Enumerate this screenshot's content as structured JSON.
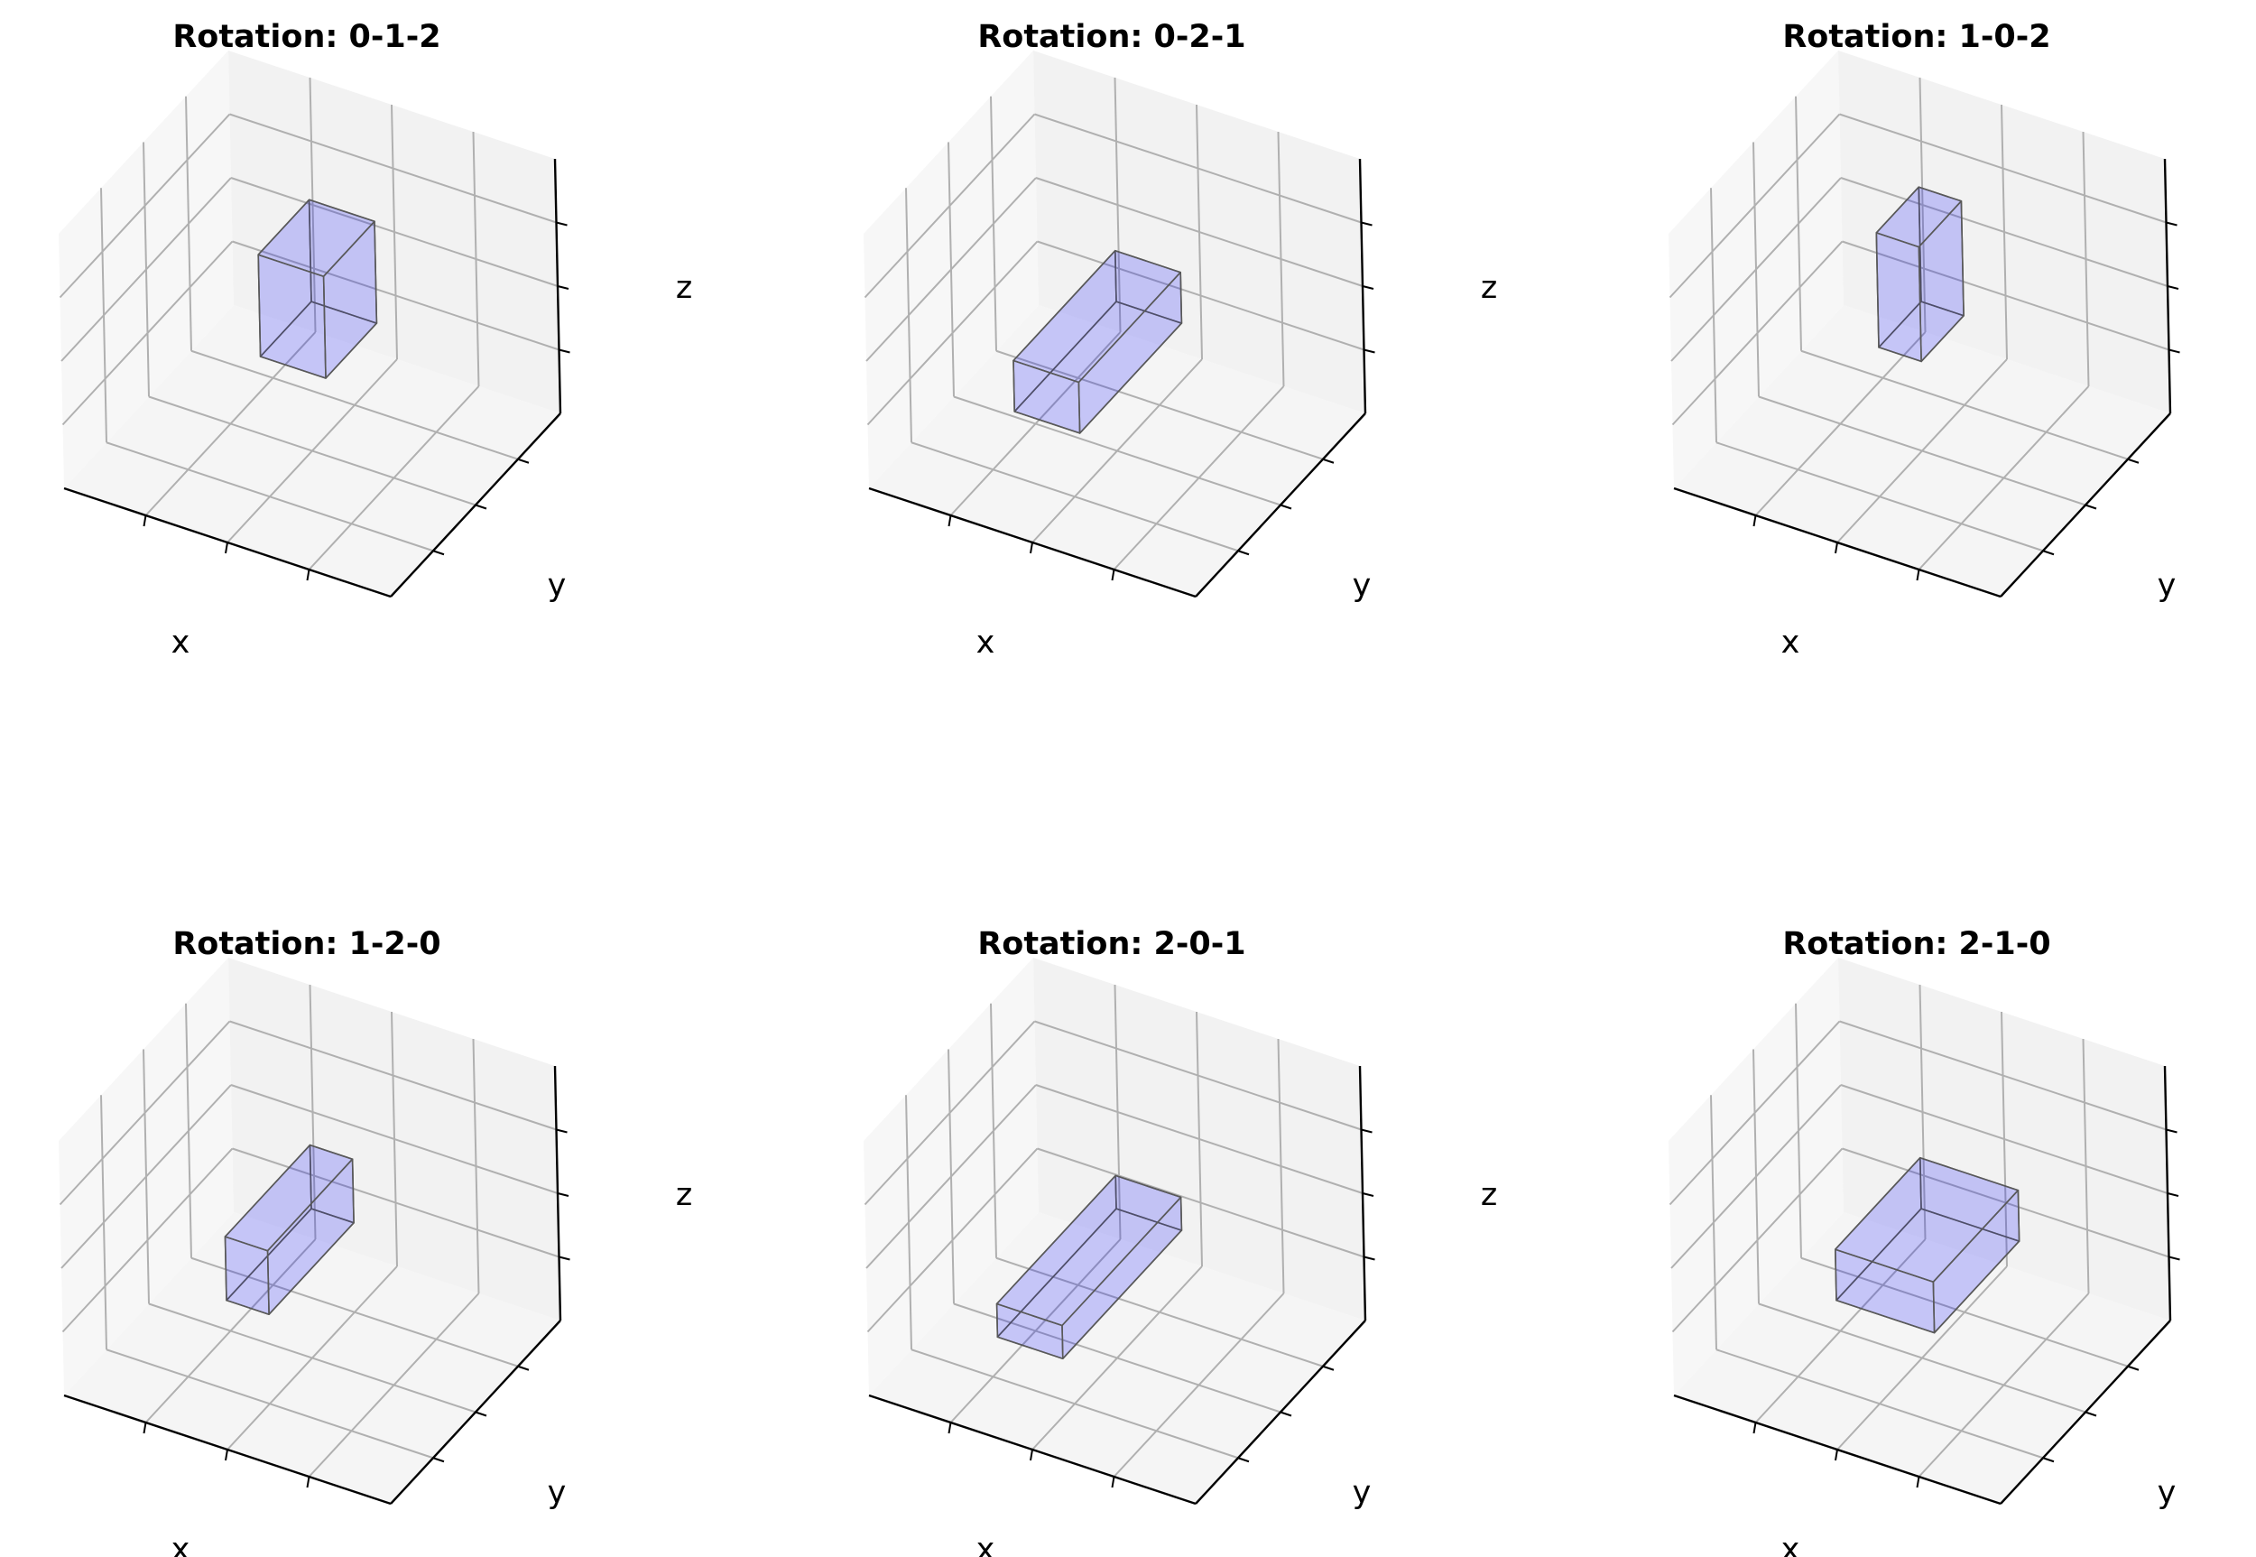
{
  "chart_data": [
    {
      "type": "3d-box",
      "title": "Rotation: 0-1-2",
      "xlabel": "x",
      "ylabel": "y",
      "zlabel": "z",
      "grid": true,
      "box_color": "#0000ff",
      "edge_color": "#595959"
    },
    {
      "type": "3d-box",
      "title": "Rotation: 0-2-1",
      "xlabel": "x",
      "ylabel": "y",
      "zlabel": "z",
      "grid": true,
      "box_color": "#0000ff",
      "edge_color": "#595959"
    },
    {
      "type": "3d-box",
      "title": "Rotation: 1-0-2",
      "xlabel": "x",
      "ylabel": "y",
      "zlabel": "z",
      "grid": true,
      "box_color": "#0000ff",
      "edge_color": "#595959"
    },
    {
      "type": "3d-box",
      "title": "Rotation: 1-2-0",
      "xlabel": "x",
      "ylabel": "y",
      "zlabel": "z",
      "grid": true,
      "box_color": "#0000ff",
      "edge_color": "#595959"
    },
    {
      "type": "3d-box",
      "title": "Rotation: 2-0-1",
      "xlabel": "x",
      "ylabel": "y",
      "zlabel": "z",
      "grid": true,
      "box_color": "#0000ff",
      "edge_color": "#595959"
    },
    {
      "type": "3d-box",
      "title": "Rotation: 2-1-0",
      "xlabel": "x",
      "ylabel": "y",
      "zlabel": "z",
      "grid": true,
      "box_color": "#0000ff",
      "edge_color": "#595959"
    }
  ]
}
